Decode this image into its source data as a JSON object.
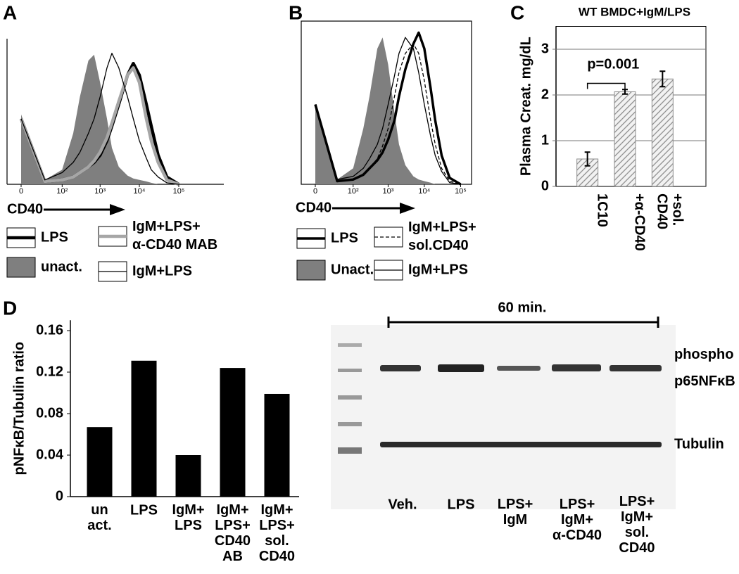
{
  "chart_data": [
    {
      "type": "line",
      "panel": "A",
      "x_label": "CD40",
      "xscale": "symlog",
      "x": [
        0,
        30,
        100,
        200,
        300,
        500,
        700,
        1000,
        1500,
        2000,
        3000,
        5000,
        7000,
        10000,
        15000,
        20000,
        30000,
        50000,
        100000
      ],
      "xlim": [
        0,
        1000000
      ],
      "xticks": [
        {
          "value": 0,
          "label": "0"
        },
        {
          "value": 100,
          "label": "10²"
        },
        {
          "value": 1000,
          "label": "10³"
        },
        {
          "value": 10000,
          "label": "10⁴"
        },
        {
          "value": 100000,
          "label": "10⁵"
        }
      ],
      "ylim": [
        0,
        100
      ],
      "series": [
        {
          "name": "unact.",
          "color": "#7f7f7f",
          "fill": true,
          "values": [
            48,
            3,
            10,
            35,
            60,
            85,
            89,
            70,
            45,
            25,
            12,
            6,
            4,
            3,
            2,
            1,
            0,
            0,
            0
          ]
        },
        {
          "name": "LPS",
          "color": "#000000",
          "width": 4.5,
          "values": [
            45,
            2,
            3,
            5,
            8,
            12,
            15,
            20,
            30,
            40,
            55,
            75,
            83,
            75,
            55,
            40,
            20,
            5,
            0
          ]
        },
        {
          "name": "IgM+LPS+\nα-CD40 MAB",
          "color": "#a6a6a6",
          "width": 4.5,
          "values": [
            45,
            2,
            3,
            5,
            8,
            12,
            16,
            22,
            32,
            42,
            57,
            75,
            80,
            70,
            45,
            30,
            15,
            3,
            0
          ]
        },
        {
          "name": "IgM+LPS",
          "color": "#000000",
          "width": 1.3,
          "values": [
            45,
            3,
            8,
            15,
            22,
            35,
            45,
            60,
            80,
            90,
            80,
            60,
            45,
            30,
            18,
            10,
            5,
            1,
            0
          ]
        }
      ]
    },
    {
      "type": "line",
      "panel": "B",
      "x_label": "CD40",
      "xscale": "symlog",
      "x": [
        0,
        30,
        100,
        200,
        300,
        500,
        700,
        1000,
        1500,
        2000,
        3000,
        5000,
        7000,
        10000,
        15000,
        20000,
        30000,
        50000,
        100000
      ],
      "xlim": [
        0,
        200000
      ],
      "xticks": [
        {
          "value": 0,
          "label": "0"
        },
        {
          "value": 100,
          "label": "10²"
        },
        {
          "value": 1000,
          "label": "10³"
        },
        {
          "value": 10000,
          "label": "10⁴"
        },
        {
          "value": 100000,
          "label": "10⁵"
        }
      ],
      "ylim": [
        0,
        100
      ],
      "series": [
        {
          "name": "Unact.",
          "color": "#7f7f7f",
          "fill": true,
          "values": [
            50,
            3,
            10,
            35,
            55,
            85,
            92,
            75,
            45,
            25,
            12,
            5,
            3,
            2,
            1,
            0,
            0,
            0,
            0
          ]
        },
        {
          "name": "LPS",
          "color": "#000000",
          "width": 3.5,
          "values": [
            50,
            2,
            3,
            6,
            10,
            15,
            20,
            28,
            40,
            55,
            72,
            88,
            95,
            85,
            60,
            40,
            18,
            4,
            0
          ]
        },
        {
          "name": "IgM+LPS+\nsol.CD40",
          "color": "#000000",
          "width": 1.3,
          "dash": "5,3",
          "values": [
            50,
            2,
            3,
            6,
            10,
            16,
            24,
            35,
            55,
            70,
            82,
            88,
            82,
            65,
            40,
            25,
            10,
            2,
            0
          ]
        },
        {
          "name": "IgM+LPS",
          "color": "#000000",
          "width": 1.3,
          "values": [
            50,
            3,
            5,
            10,
            16,
            25,
            35,
            50,
            68,
            82,
            92,
            85,
            70,
            50,
            30,
            18,
            8,
            1,
            0
          ]
        }
      ]
    },
    {
      "type": "bar",
      "panel": "C",
      "title": "WT BMDC+IgM/LPS",
      "y_label": "Plasma Creat. mg/dL",
      "categories": [
        "1C10",
        "+α-CD40",
        "+sol.\nCD40"
      ],
      "rotate_labels": true,
      "values": [
        0.6,
        2.07,
        2.35
      ],
      "errors": [
        0.15,
        0.05,
        0.17
      ],
      "color": "#8c8c8c",
      "hatch": true,
      "ylim": [
        0,
        3.5
      ],
      "yticks": [
        0,
        1,
        2,
        3
      ],
      "grid": true,
      "annotation": "p=0.001"
    },
    {
      "type": "bar",
      "panel": "D",
      "y_label": "pNFκB/Tubulin ratio",
      "categories": [
        "un\nact.",
        "LPS",
        "IgM+\nLPS",
        "IgM+\nLPS+\nCD40\nAB",
        "IgM+\nLPS+\nsol.\nCD40"
      ],
      "values": [
        0.067,
        0.131,
        0.04,
        0.124,
        0.099
      ],
      "color": "#000000",
      "ylim": [
        0,
        0.17
      ],
      "yticks": [
        0,
        0.04,
        0.08,
        0.12,
        0.16
      ]
    }
  ],
  "blot": {
    "time": "60 min.",
    "bands": [
      "phospho\np65NFκB",
      "Tubulin"
    ],
    "lanes": [
      "Veh.",
      "LPS",
      "LPS+\nIgM",
      "LPS+\nIgM+\nα-CD40",
      "LPS+\nIgM+\nsol.\nCD40"
    ]
  }
}
